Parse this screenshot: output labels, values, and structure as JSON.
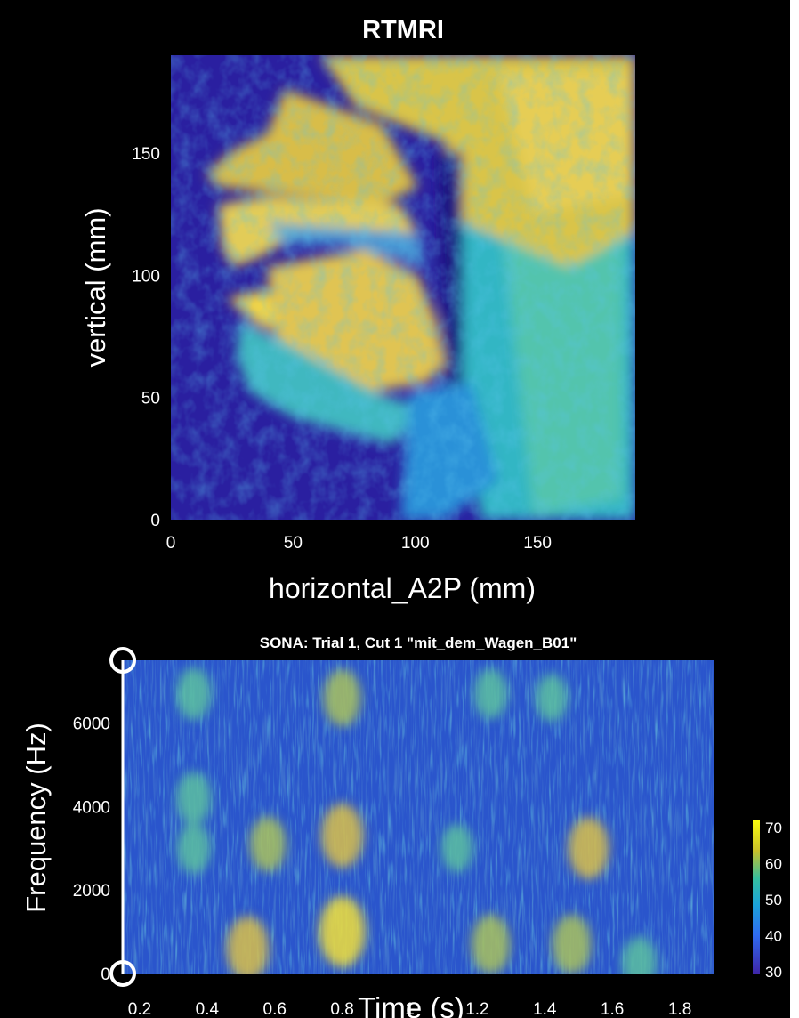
{
  "colors": {
    "background": "#000000",
    "axis_text": "#ffffff",
    "parula_low": "#3e26a8",
    "parula_mid": "#1ba3da",
    "parula_high": "#f9fb0e",
    "handle": "#ffffff"
  },
  "chart_data": [
    {
      "type": "heatmap",
      "title": "RTMRI",
      "xlabel": "horizontal_A2P (mm)",
      "ylabel": "vertical (mm)",
      "xlim": [
        0,
        190
      ],
      "ylim": [
        0,
        190
      ],
      "xticks": [
        0,
        50,
        100,
        150
      ],
      "yticks": [
        0,
        50,
        100,
        150
      ],
      "colormap": "parula",
      "content": "midsagittal MRI image of the vocal tract"
    },
    {
      "type": "heatmap",
      "title": "SONA: Trial 1, Cut 1 \"mit_dem_Wagen_B01\"",
      "xlabel": "Time (s)",
      "ylabel": "Frequency (Hz)",
      "xlim": [
        0.15,
        1.9
      ],
      "ylim": [
        0,
        7500
      ],
      "xticks": [
        0.2,
        0.4,
        0.6,
        0.8,
        1,
        1.2,
        1.4,
        1.6,
        1.8
      ],
      "xtick_labels": [
        "0.2",
        "0.4",
        "0.6",
        "0.8",
        "1",
        "1.2",
        "1.4",
        "1.6",
        "1.8"
      ],
      "yticks": [
        0,
        2000,
        4000,
        6000
      ],
      "colormap": "parula",
      "colorbar_ticks": [
        30,
        40,
        50,
        60,
        70
      ],
      "energy_blobs": [
        {
          "t": 0.36,
          "f": 6700,
          "level": 0.6
        },
        {
          "t": 0.36,
          "f": 4200,
          "level": 0.6
        },
        {
          "t": 0.36,
          "f": 3000,
          "level": 0.55
        },
        {
          "t": 0.52,
          "f": 600,
          "level": 0.85
        },
        {
          "t": 0.58,
          "f": 3100,
          "level": 0.65
        },
        {
          "t": 0.8,
          "f": 1000,
          "level": 1.0
        },
        {
          "t": 0.8,
          "f": 3300,
          "level": 0.85
        },
        {
          "t": 0.8,
          "f": 6600,
          "level": 0.7
        },
        {
          "t": 1.14,
          "f": 3000,
          "level": 0.5
        },
        {
          "t": 1.24,
          "f": 700,
          "level": 0.75
        },
        {
          "t": 1.24,
          "f": 6700,
          "level": 0.55
        },
        {
          "t": 1.48,
          "f": 700,
          "level": 0.75
        },
        {
          "t": 1.53,
          "f": 3000,
          "level": 0.8
        },
        {
          "t": 1.42,
          "f": 6600,
          "level": 0.5
        },
        {
          "t": 1.68,
          "f": 250,
          "level": 0.6
        }
      ]
    }
  ]
}
